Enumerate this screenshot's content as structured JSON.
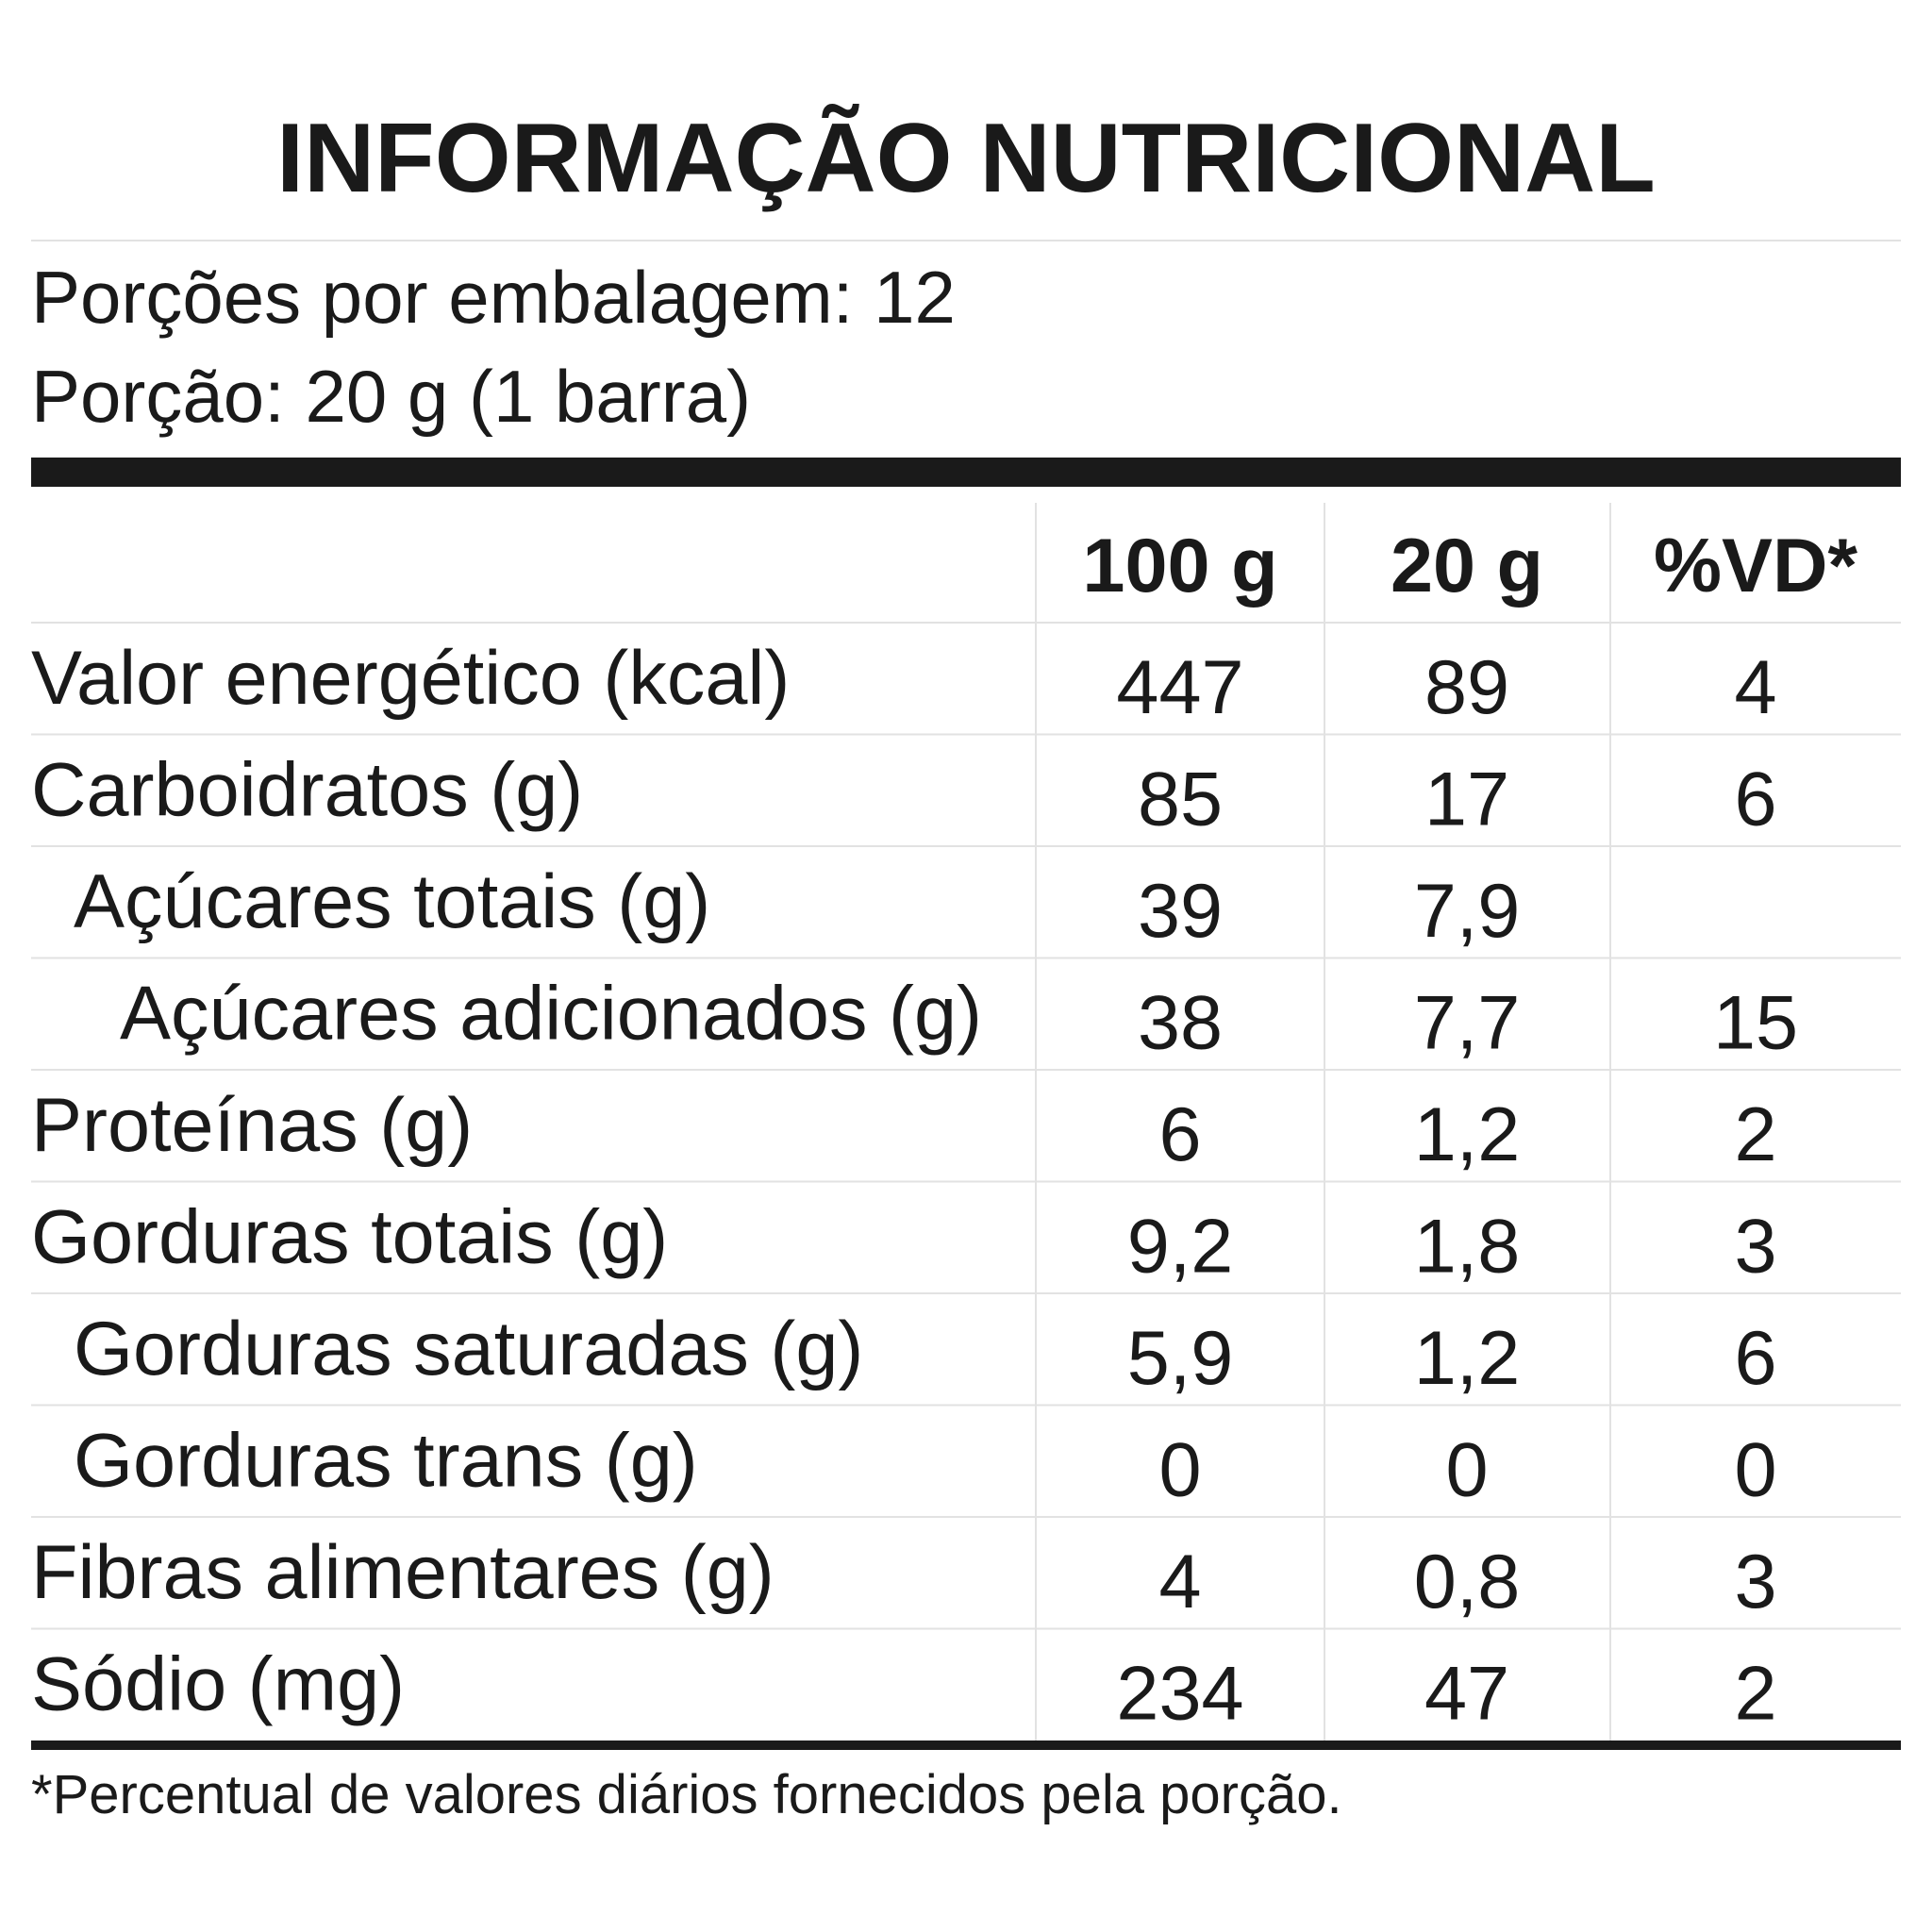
{
  "header": {
    "title": "INFORMAÇÃO NUTRICIONAL",
    "servings": "Porções por embalagem: 12",
    "portion": "Porção: 20 g (1 barra)"
  },
  "table": {
    "columns": [
      "100 g",
      "20 g",
      "%VD*"
    ],
    "rows": [
      [
        "Valor energético (kcal)",
        "447",
        "89",
        "4"
      ],
      [
        "Carboidratos (g)",
        "85",
        "17",
        "6"
      ],
      [
        "Açúcares totais (g)",
        "39",
        "7,9",
        null
      ],
      [
        "Açúcares adicionados (g)",
        "38",
        "7,7",
        "15"
      ],
      [
        "Proteínas (g)",
        "6",
        "1,2",
        "2"
      ],
      [
        "Gorduras totais (g)",
        "9,2",
        "1,8",
        "3"
      ],
      [
        "Gorduras saturadas (g)",
        "5,9",
        "1,2",
        "6"
      ],
      [
        "Gorduras trans (g)",
        "0",
        "0",
        "0"
      ],
      [
        "Fibras alimentares (g)",
        "4",
        "0,8",
        "3"
      ],
      [
        "Sódio (mg)",
        "234",
        "47",
        "2"
      ]
    ]
  },
  "footnote": "*Percentual de valores diários fornecidos pela porção."
}
